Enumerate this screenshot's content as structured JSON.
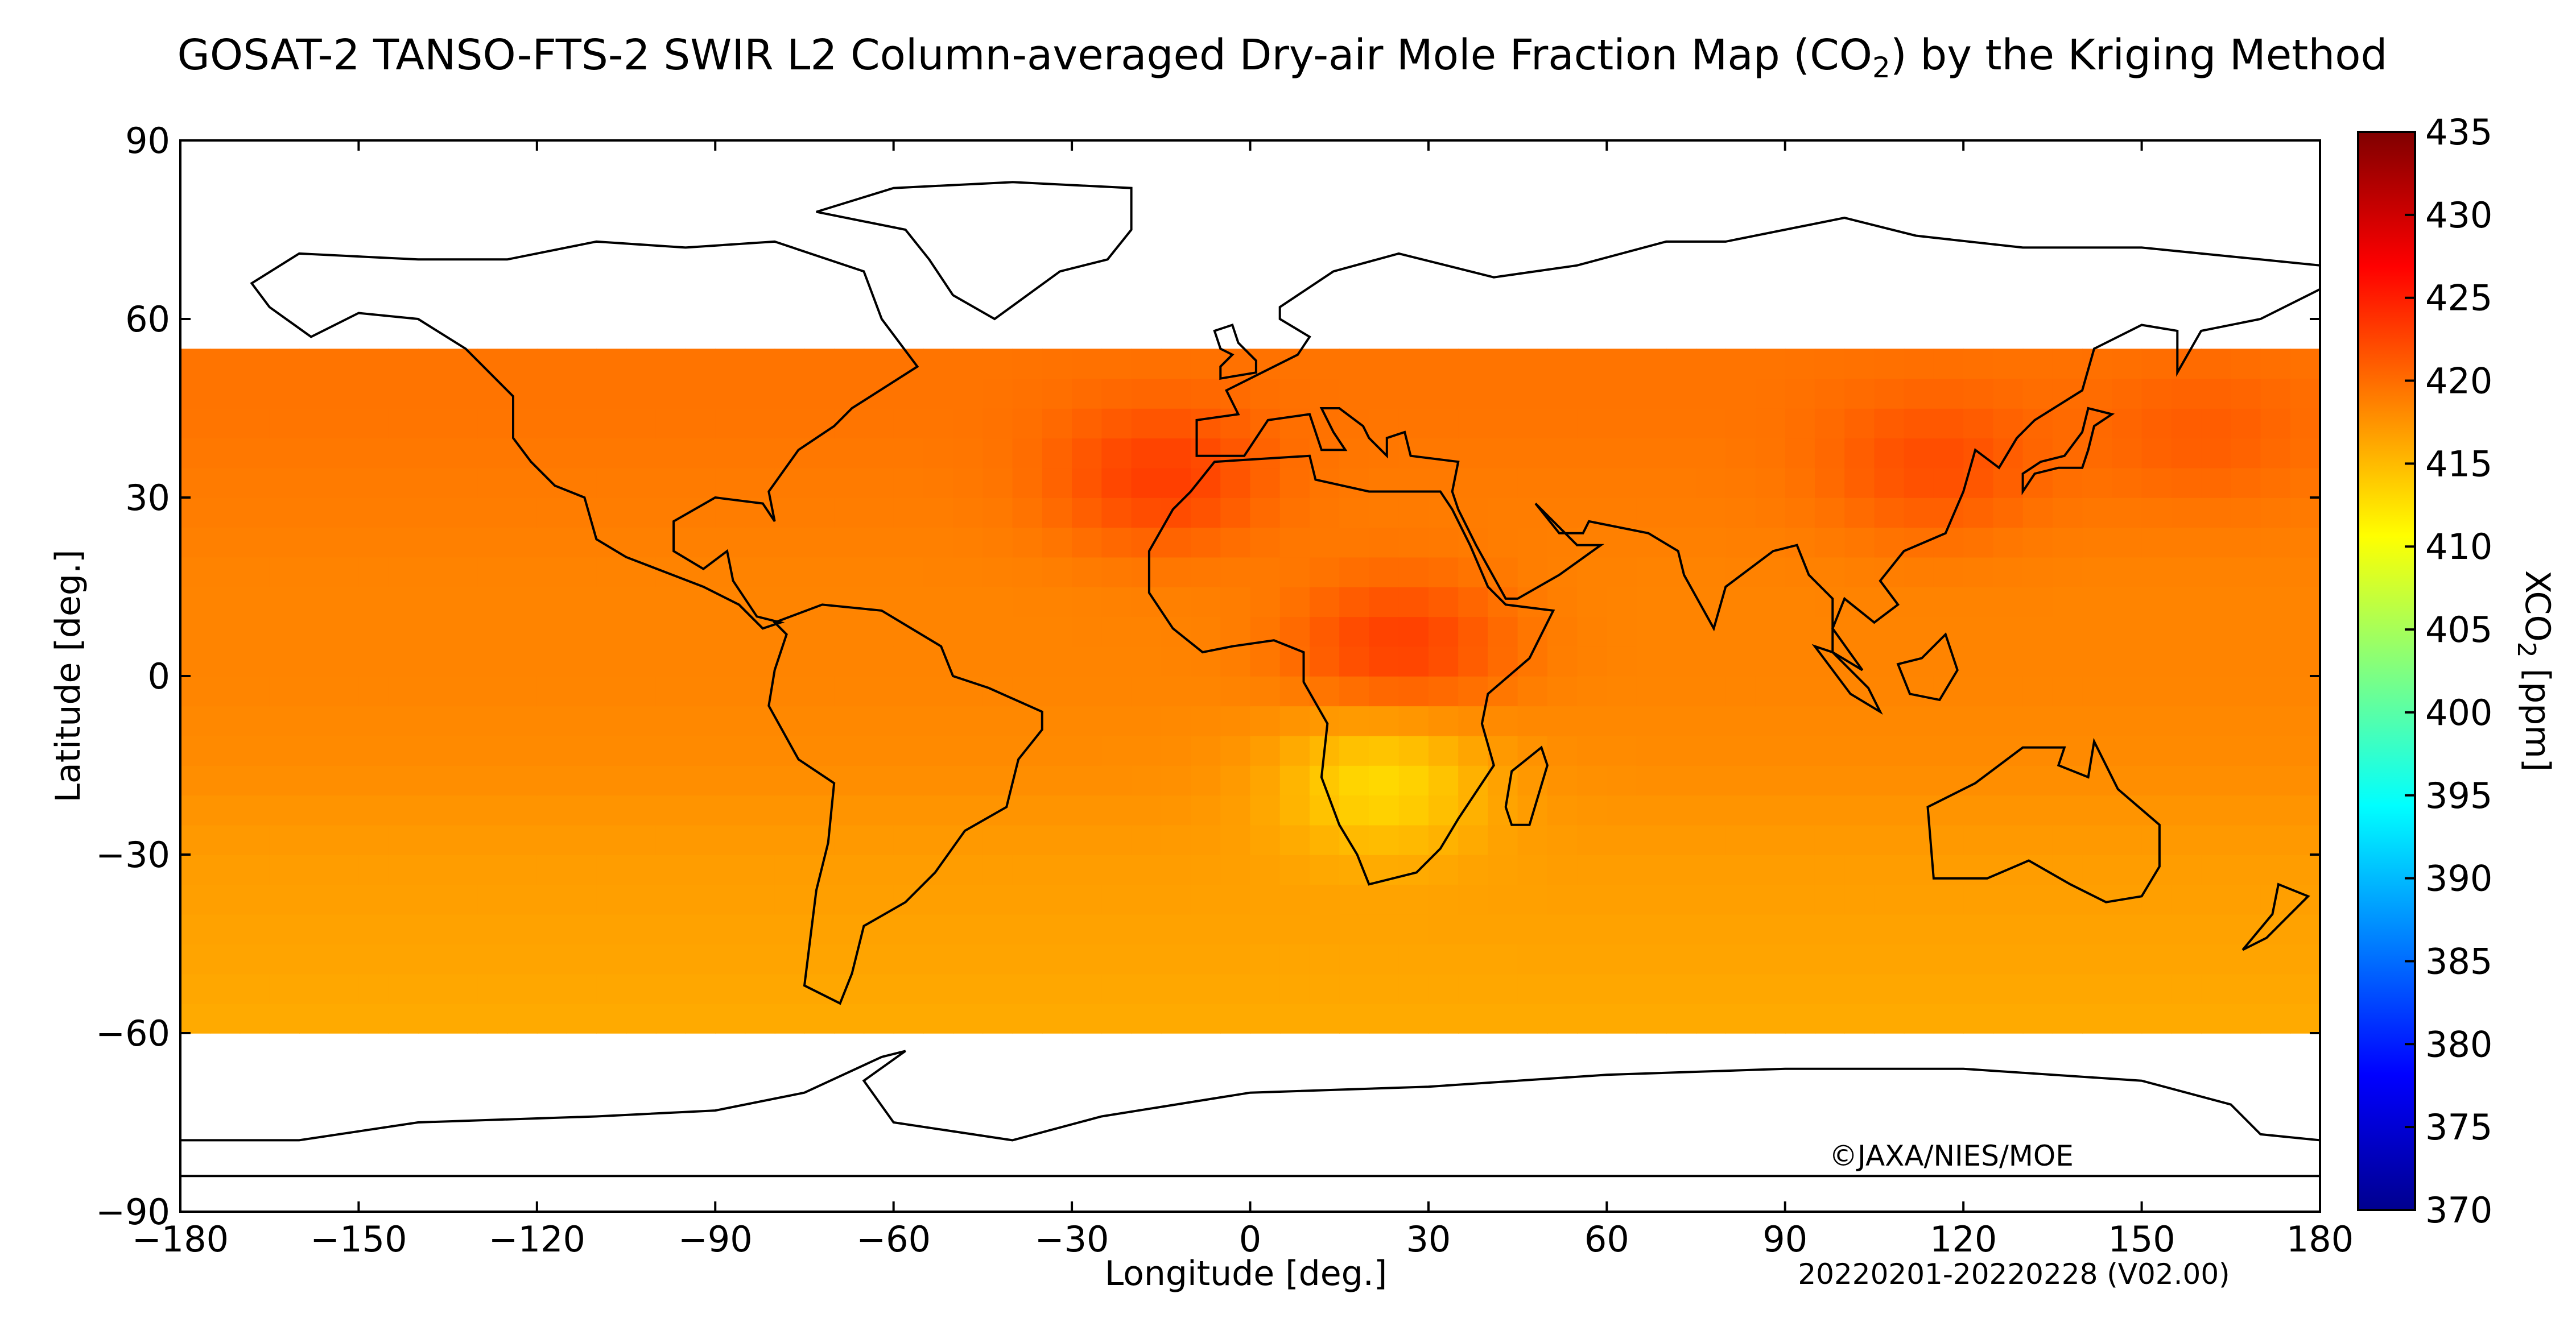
{
  "title": {
    "before": "GOSAT-2 TANSO-FTS-2 SWIR L2 Column-averaged Dry-air Mole Fraction Map (CO",
    "subscript": "2",
    "after": ") by the Kriging Method"
  },
  "credit": "©JAXA/NIES/MOE",
  "period": "20220201-20220228 (V02.00)",
  "colorbar": {
    "label_main": "XCO",
    "label_sub": "2",
    "label_unit": " [ppm]",
    "ticks": [
      "370",
      "375",
      "380",
      "385",
      "390",
      "395",
      "400",
      "405",
      "410",
      "415",
      "420",
      "425",
      "430",
      "435"
    ],
    "colors": [
      "#00008f",
      "#0000ff",
      "#0080ff",
      "#00ffff",
      "#80ff80",
      "#ffff00",
      "#ff8000",
      "#ff0000",
      "#800000"
    ]
  },
  "chart_data": {
    "type": "heatmap",
    "xlabel": "Longitude [deg.]",
    "ylabel": "Latitude [deg.]",
    "xlim": [
      -180,
      180
    ],
    "ylim": [
      -90,
      90
    ],
    "xticks": [
      "−180",
      "−150",
      "−120",
      "−90",
      "−60",
      "−30",
      "0",
      "30",
      "60",
      "90",
      "120",
      "150",
      "180"
    ],
    "yticks": [
      "90",
      "60",
      "30",
      "0",
      "−30",
      "−60",
      "−90"
    ],
    "value_range": [
      370,
      435
    ],
    "units": "ppm",
    "coverage_lat": [
      -62,
      56
    ],
    "latitude_band_values": [
      {
        "lat": 55,
        "value": 419.5
      },
      {
        "lat": 45,
        "value": 419.5
      },
      {
        "lat": 30,
        "value": 419
      },
      {
        "lat": 15,
        "value": 418.5
      },
      {
        "lat": 0,
        "value": 418.5
      },
      {
        "lat": -15,
        "value": 418
      },
      {
        "lat": -30,
        "value": 417
      },
      {
        "lat": -45,
        "value": 416.5
      },
      {
        "lat": -60,
        "value": 416
      }
    ],
    "regional_features": [
      {
        "region": "Central Africa",
        "lon": 25,
        "lat": 5,
        "value": 423
      },
      {
        "region": "West Africa",
        "lon": -15,
        "lat": 33,
        "value": 423
      },
      {
        "region": "East Asia",
        "lon": 115,
        "lat": 35,
        "value": 422
      },
      {
        "region": "North Pacific",
        "lon": 160,
        "lat": 40,
        "value": 421
      },
      {
        "region": "Southern Africa",
        "lon": 22,
        "lat": -17,
        "value": 413
      }
    ]
  }
}
